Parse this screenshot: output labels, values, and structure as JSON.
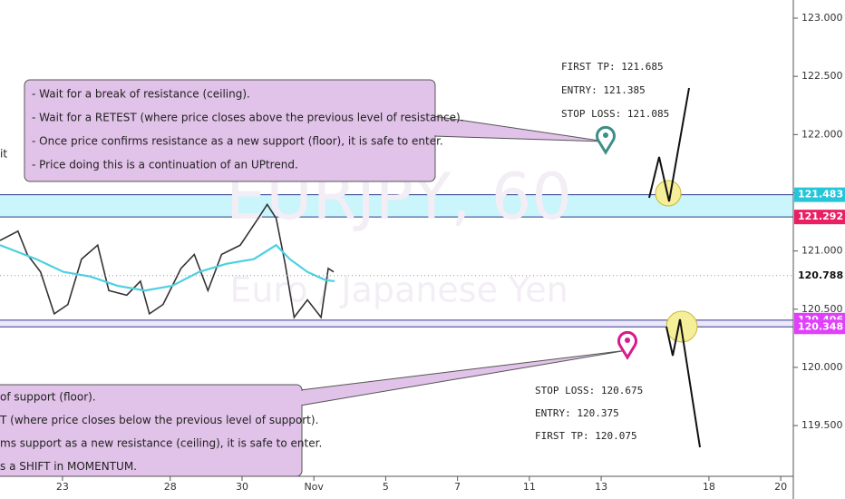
{
  "chart_data": {
    "type": "line",
    "watermark": [
      "EURJPY, 60",
      "Euro / Japanese Yen"
    ],
    "xlim": [
      -1.74,
      20.35
    ],
    "xticks": [
      {
        "value": 0,
        "label": "23"
      },
      {
        "value": 3,
        "label": "28"
      },
      {
        "value": 5,
        "label": "30"
      },
      {
        "value": 7,
        "label": "Nov"
      },
      {
        "value": 9,
        "label": "5"
      },
      {
        "value": 11,
        "label": "7"
      },
      {
        "value": 13,
        "label": "11"
      },
      {
        "value": 15,
        "label": "13"
      },
      {
        "value": 18,
        "label": "18"
      },
      {
        "value": 20,
        "label": "20"
      }
    ],
    "ylim": [
      119.064,
      123.156
    ],
    "yticks": [
      {
        "value": 119.5,
        "label": "119.500"
      },
      {
        "value": 120,
        "label": "120.000"
      },
      {
        "value": 120.5,
        "label": "120.500"
      },
      {
        "value": 121,
        "label": "121.000"
      },
      {
        "value": 121.5,
        "label": "121.500"
      },
      {
        "value": 122,
        "label": "122.000"
      },
      {
        "value": 122.5,
        "label": "122.500"
      },
      {
        "value": 123,
        "label": "123.000"
      }
    ],
    "series": [
      {
        "color": "#333333",
        "x": [
          -1.74,
          -1.24,
          -0.98,
          -0.61,
          -0.23,
          0.15,
          0.53,
          0.98,
          1.29,
          1.79,
          2.17,
          2.42,
          2.8,
          3.3,
          3.67,
          4.05,
          4.43,
          4.95,
          5.45,
          5.7,
          5.95,
          6.2,
          6.45,
          6.82,
          7.2,
          7.4,
          7.55
        ],
        "values": [
          121.09,
          121.17,
          120.97,
          120.82,
          120.46,
          120.54,
          120.93,
          121.05,
          120.66,
          120.62,
          120.74,
          120.46,
          120.54,
          120.85,
          120.97,
          120.66,
          120.97,
          121.05,
          121.28,
          121.4,
          121.28,
          120.89,
          120.43,
          120.58,
          120.43,
          120.85,
          120.82
        ]
      },
      {
        "color": "#4dd0e1",
        "x": [
          -1.74,
          -0.73,
          0.03,
          0.78,
          1.54,
          2.3,
          3.05,
          3.81,
          4.57,
          5.33,
          5.95,
          6.33,
          6.82,
          7.32,
          7.58
        ],
        "values": [
          121.05,
          120.93,
          120.82,
          120.78,
          120.7,
          120.66,
          120.7,
          120.82,
          120.89,
          120.93,
          121.05,
          120.93,
          120.82,
          120.75,
          120.74
        ]
      }
    ],
    "zones": [
      {
        "top": 121.483,
        "bottom": 121.292,
        "color": "#c9f5fb",
        "top_tag_color": "#26c6da",
        "bottom_tag_color": "#e91e63"
      },
      {
        "top": 120.406,
        "bottom": 120.348,
        "color": "#eee6fb",
        "top_tag_color": "#e040fb",
        "bottom_tag_color": "#e040fb"
      }
    ],
    "last_price": 120.788,
    "left_fragment": "it",
    "top_note": [
      "- Wait for a break of resistance (ceiling).",
      "- Wait for a RETEST (where price closes above the previous level of resistance).",
      "- Once price confirms resistance as a new support (floor), it is safe to enter.",
      "- Price doing this is a continuation of an UPtrend."
    ],
    "bottom_note": [
      "of support (floor).",
      "T (where price closes below the previous level of support).",
      "ms support as a new resistance (ceiling), it is safe to enter.",
      "s a SHIFT in MOMENTUM."
    ],
    "long_plan": [
      "FIRST TP: 121.685",
      "ENTRY: 121.385",
      "STOP LOSS: 121.085"
    ],
    "short_plan": [
      "STOP LOSS: 120.675",
      "ENTRY: 120.375",
      "FIRST TP: 120.075"
    ]
  }
}
